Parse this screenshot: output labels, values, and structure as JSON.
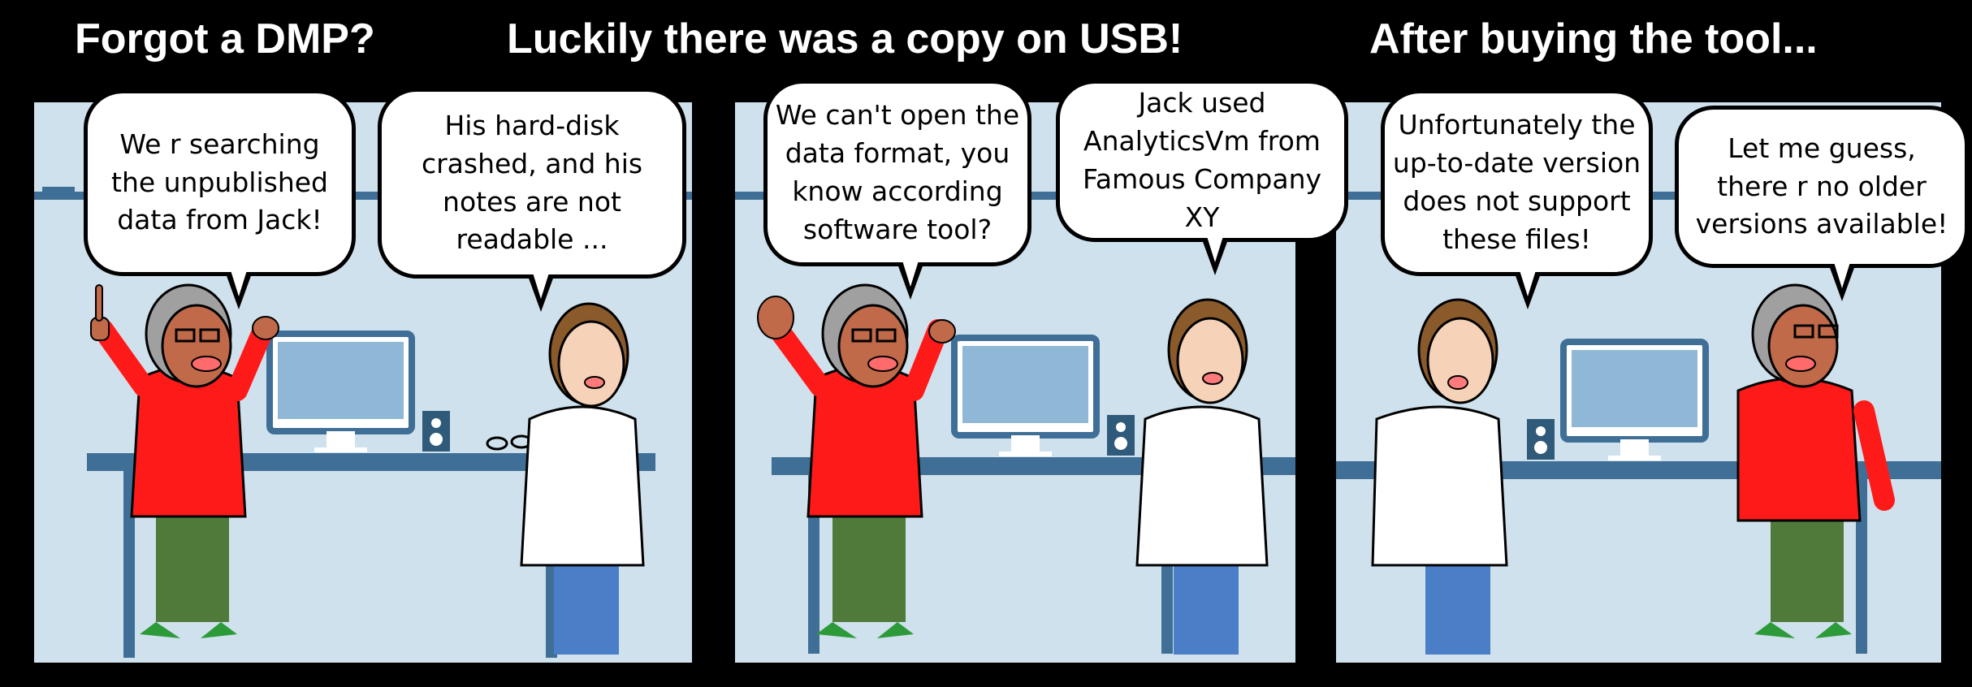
{
  "titles": {
    "panel1": "Forgot a DMP?",
    "panel2": "Luckily there was a copy on USB!",
    "panel3": "After buying the tool..."
  },
  "bubbles": {
    "p1_left": [
      "We r searching",
      "the unpublished",
      "data from Jack!"
    ],
    "p1_right": [
      "His hard-disk",
      "crashed, and his",
      "notes are not",
      "readable ..."
    ],
    "p2_left": [
      "We can't open the",
      "data format, you",
      "know according",
      "software tool?"
    ],
    "p2_right": [
      "Jack used",
      "AnalyticsVm from",
      "Famous Company",
      "XY"
    ],
    "p3_left": [
      "Unfortunately the",
      "up-to-date version",
      "does not support",
      "these files!"
    ],
    "p3_right": [
      "Let me guess,",
      "there r no older",
      "versions available!"
    ]
  },
  "colors": {
    "background": "#000000",
    "panel": "#cfe1ec",
    "desk": "#3f6f97",
    "sweater": "#ff1a1a",
    "pants": "#4f7a3a",
    "coat": "#ffffff",
    "jeans": "#4a7fc7"
  }
}
